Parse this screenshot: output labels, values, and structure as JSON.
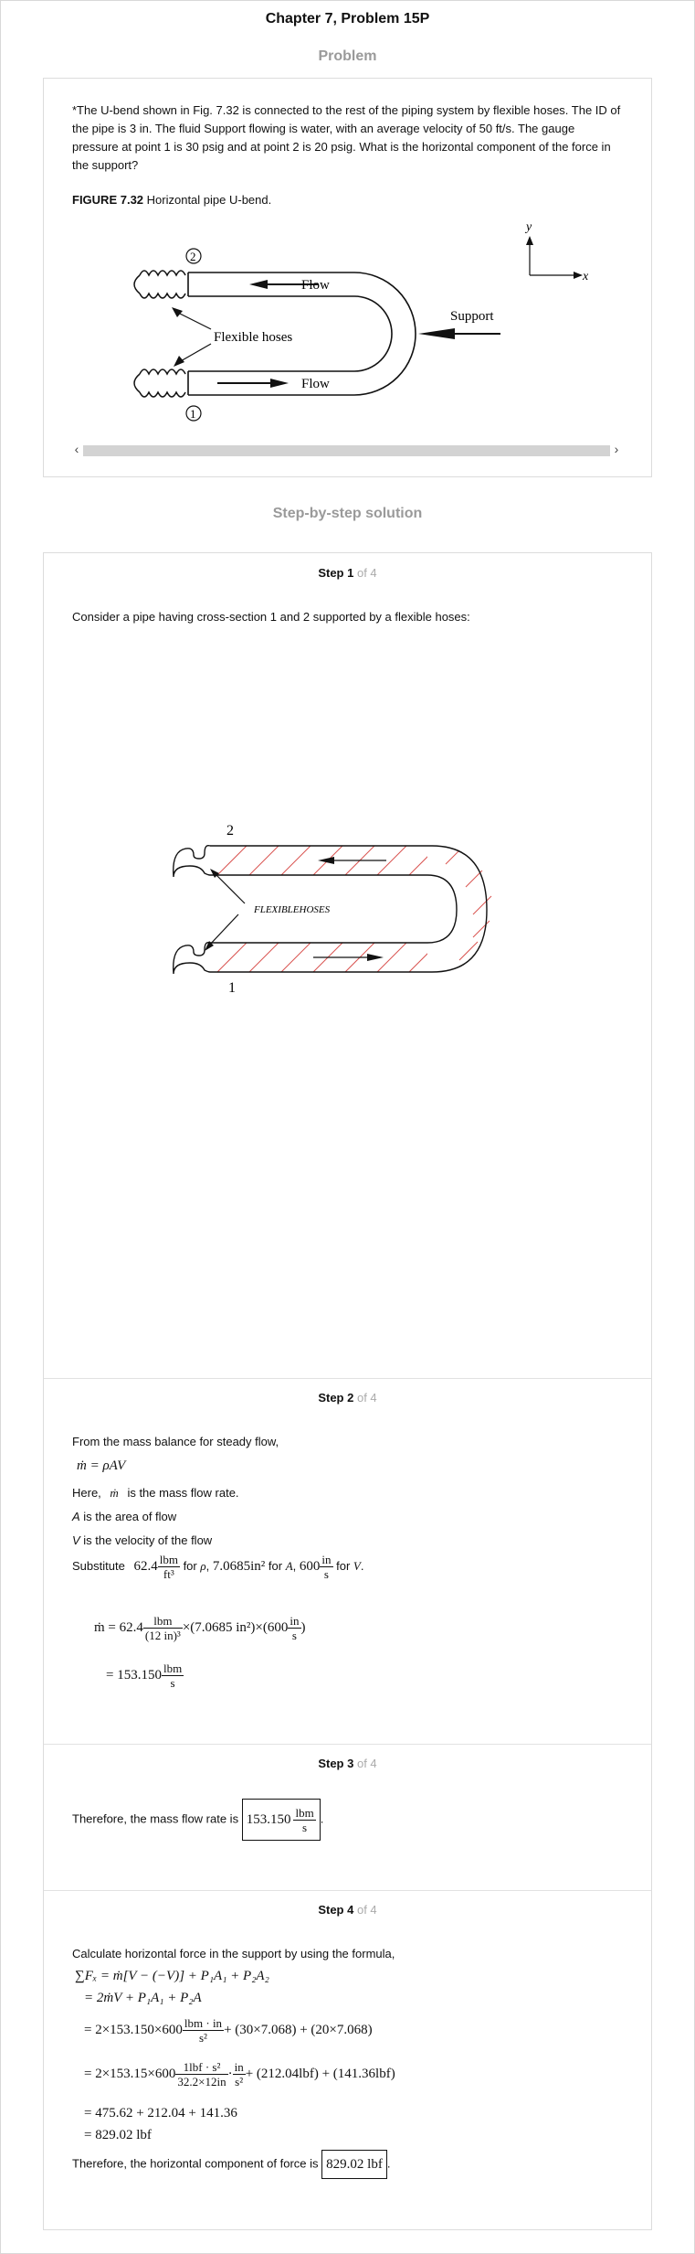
{
  "page": {
    "title": "Chapter 7, Problem 15P"
  },
  "problem": {
    "heading": "Problem",
    "text": "*The U-bend shown in Fig. 7.32 is connected to the rest of the piping system by flexible hoses. The ID of the pipe is 3 in. The fluid Support flowing is water, with an average velocity of 50 ft/s. The gauge pressure at point 1 is 30 psig and at point 2 is 20 psig. What is the horizontal component of the force in the support?",
    "figure_label": "FIGURE 7.32",
    "figure_caption": " Horizontal pipe U-bend.",
    "figure": {
      "label_point2": "2",
      "label_point1": "1",
      "label_flow_top": "Flow",
      "label_flow_bottom": "Flow",
      "label_hoses": "Flexible hoses",
      "label_support": "Support",
      "axis_y": "y",
      "axis_x": "x"
    }
  },
  "solution": {
    "heading": "Step-by-step solution",
    "of_text": "of 4",
    "step1": {
      "label": "Step 1",
      "text": "Consider a pipe having cross-section 1 and 2 supported by a flexible hoses:",
      "fig_label_2": "2",
      "fig_label_1": "1",
      "fig_hoses": "FLEXIBLEHOSES"
    },
    "step2": {
      "label": "Step 2",
      "intro": "From the mass balance for steady flow,",
      "eq1": "ṁ = ρAV",
      "here_prefix": "Here,",
      "here_suffix": "is the mass flow rate.",
      "mdot": "ṁ",
      "a_var": "A",
      "a_desc": " is the area of flow",
      "v_var": "V",
      "v_desc": " is the velocity of the flow",
      "sub_word": "Substitute",
      "sub_for": "for",
      "sub_rho_val": "62.4",
      "sub_rho_unit_num": "lbm",
      "sub_rho_unit_den": "ft³",
      "sub_rho": "ρ",
      "sub_a_val": "7.0685in²",
      "sub_a": "A",
      "sub_v_val": "600",
      "sub_v_unit_num": "in",
      "sub_v_unit_den": "s",
      "sub_v": "V",
      "calc_lhs": "ṁ = 62.4",
      "calc_lbm": "lbm",
      "calc_den": "(12 in)³",
      "calc_mid": "×(7.0685 in²)×",
      "calc_600": "600",
      "calc_in": "in",
      "calc_s": "s",
      "result_prefix": "= 153.150",
      "result_num": "lbm",
      "result_den": "s"
    },
    "step3": {
      "label": "Step 3",
      "text": "Therefore, the mass flow rate is",
      "value": "153.150",
      "unit_num": "lbm",
      "unit_den": "s",
      "period": "."
    },
    "step4": {
      "label": "Step 4",
      "intro": "Calculate horizontal force in the support by using the formula,",
      "l1": "∑Fₓ = ṁ[V − (−V)] + P₁A₁ + P₂A₂",
      "l2": "= 2ṁV + P₁A₁ + P₂A",
      "l3a": "= 2×153.150×600",
      "l3_num": "lbm · in",
      "l3_den": "s²",
      "l3b": "+ (30×7.068) + (20×7.068)",
      "l4a": "= 2×153.15×600",
      "l4_num": "1lbf · s²",
      "l4_den": "32.2×12in",
      "l4_dot": "·",
      "l4_num2": "in",
      "l4_den2": "s²",
      "l4b": "+ (212.04lbf) + (141.36lbf)",
      "l5": "= 475.62 + 212.04 + 141.36",
      "l6": "= 829.02 lbf",
      "final_text": "Therefore, the horizontal component of force is",
      "final_value": "829.02 lbf",
      "period": "."
    }
  },
  "colors": {
    "heading_gray": "#9a9a9a",
    "border": "#dcdcdc",
    "hatch_red": "#d9534f"
  }
}
